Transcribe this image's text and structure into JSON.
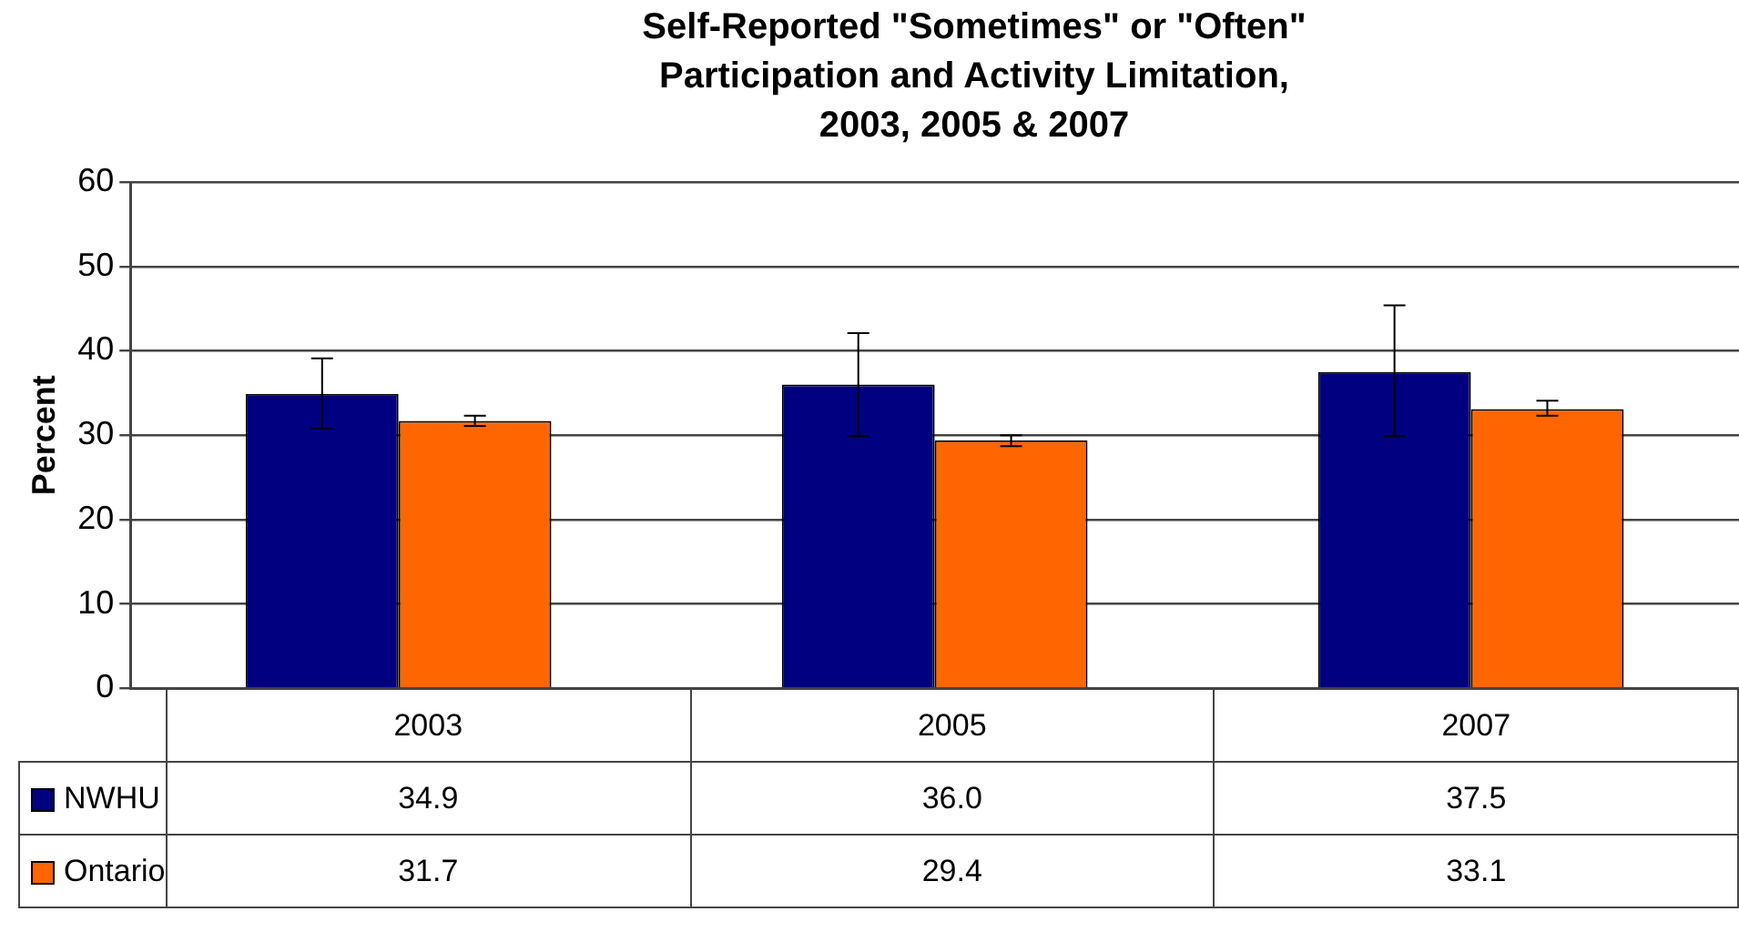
{
  "chart_data": {
    "type": "bar",
    "title": "Self-Reported \"Sometimes\" or \"Often\" Participation and Activity Limitation, 2003, 2005 & 2007",
    "ylabel": "Percent",
    "categories": [
      "2003",
      "2005",
      "2007"
    ],
    "series": [
      {
        "name": "NWHU",
        "color": "#000080",
        "values": [
          34.9,
          36.0,
          37.5
        ],
        "value_labels": [
          "34.9",
          "36.0",
          "37.5"
        ],
        "errors": [
          [
            30.8,
            39.1
          ],
          [
            29.9,
            42.1
          ],
          [
            29.9,
            45.4
          ]
        ]
      },
      {
        "name": "Ontario",
        "color": "#ff6600",
        "values": [
          31.7,
          29.4,
          33.1
        ],
        "value_labels": [
          "31.7",
          "29.4",
          "33.1"
        ],
        "errors": [
          [
            31.1,
            32.3
          ],
          [
            28.7,
            30.0
          ],
          [
            32.3,
            34.1
          ]
        ]
      }
    ],
    "ylim": [
      0,
      60
    ],
    "yticks": [
      0,
      10,
      20,
      30,
      40,
      50,
      60
    ],
    "grid": "y",
    "legend": "bottom"
  }
}
